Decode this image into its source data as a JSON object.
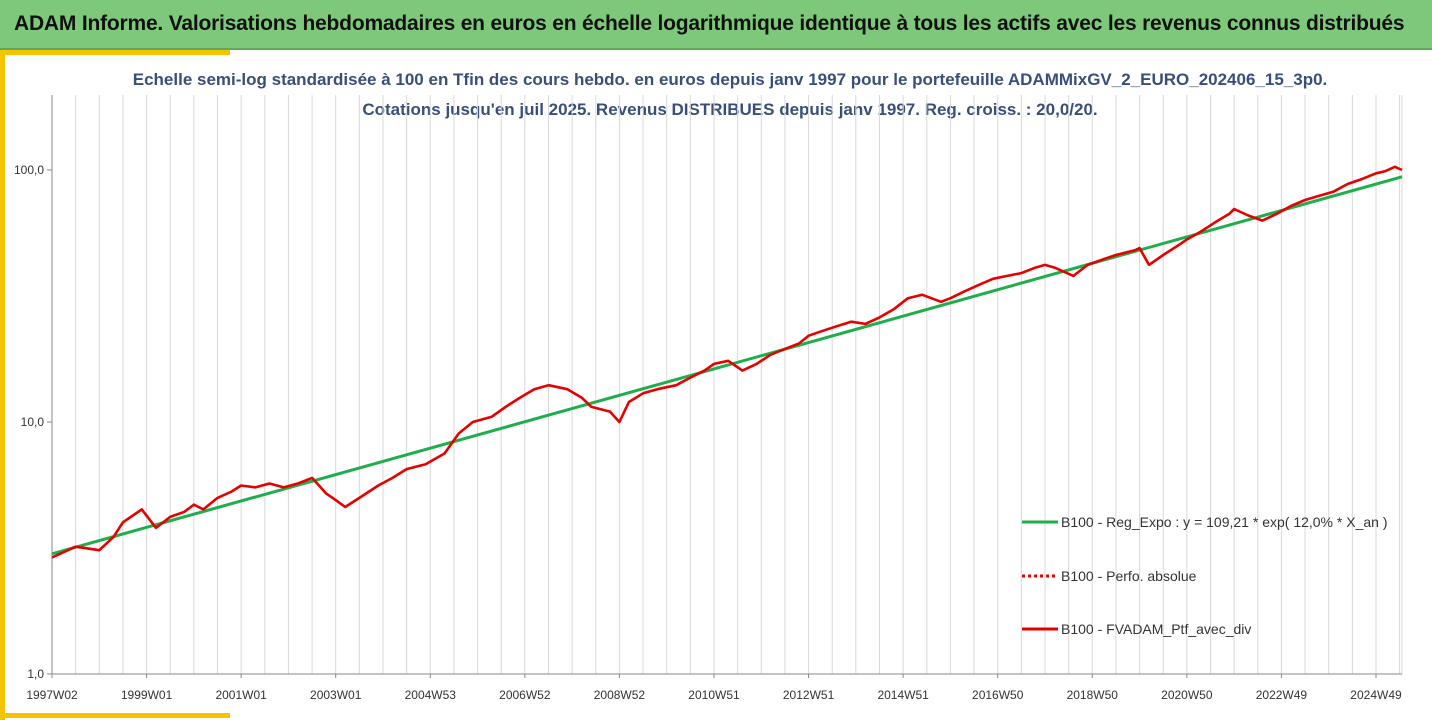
{
  "header": {
    "title": "ADAM Informe. Valorisations hebdomadaires en euros en échelle logarithmique identique à tous les actifs avec les revenus connus distribués"
  },
  "colors": {
    "banner": "#7dc87a",
    "accent": "#f5c400",
    "regression": "#1fae4b",
    "portfolio": "#e60000",
    "grid": "#d9d9d9",
    "subtitle": "#3a4e7a"
  },
  "chart_data": {
    "type": "line",
    "title": "Echelle semi-log standardisée  à 100 en Tfin des cours hebdo.  en euros depuis janv 1997 pour le portefeuille ADAMMixGV_2_EURO_202406_15_3p0.",
    "subtitle": "Cotations  jusqu'en juil 2025. Revenus DISTRIBUES depuis janv 1997. Reg. croiss. : 20,0/20.",
    "y_scale": "log",
    "ylim": [
      1,
      200
    ],
    "y_ticks": [
      1,
      10,
      100
    ],
    "y_tick_labels": [
      "1,0",
      "10,0",
      "100,0"
    ],
    "x_range": [
      1997.0,
      2025.55
    ],
    "x_tick_labels": [
      "1997W02",
      "1999W01",
      "2001W01",
      "2003W01",
      "2004W53",
      "2006W52",
      "2008W52",
      "2010W51",
      "2012W51",
      "2014W51",
      "2016W50",
      "2018W50",
      "2020W50",
      "2022W49",
      "2024W49"
    ],
    "x_tick_years": [
      1997.0,
      1999.0,
      2001.0,
      2003.0,
      2005.0,
      2007.0,
      2009.0,
      2011.0,
      2013.0,
      2015.0,
      2017.0,
      2019.0,
      2021.0,
      2023.0,
      2025.0
    ],
    "grid": "vertical",
    "legend_position": "right",
    "series": [
      {
        "name": "B100 - Reg_Expo : y = 109,21 * exp( 12,0% *  X_an )",
        "style": "solid",
        "color": "#1fae4b",
        "x": [
          1997.0,
          2025.55
        ],
        "y": [
          3.0,
          94.0
        ]
      },
      {
        "name": "B100 - Perfo. absolue",
        "style": "dotted",
        "color": "#e60000",
        "x": [],
        "y": []
      },
      {
        "name": "B100 - FVADAM_Ptf_avec_div",
        "style": "solid",
        "color": "#e60000",
        "x": [
          1997.0,
          1997.5,
          1998.0,
          1998.3,
          1998.5,
          1998.9,
          1999.2,
          1999.5,
          1999.8,
          2000.0,
          2000.2,
          2000.5,
          2000.8,
          2001.0,
          2001.3,
          2001.6,
          2001.9,
          2002.2,
          2002.5,
          2002.8,
          2003.0,
          2003.2,
          2003.5,
          2003.9,
          2004.2,
          2004.5,
          2004.9,
          2005.3,
          2005.6,
          2005.9,
          2006.3,
          2006.6,
          2006.9,
          2007.2,
          2007.5,
          2007.9,
          2008.2,
          2008.4,
          2008.8,
          2009.0,
          2009.2,
          2009.5,
          2009.8,
          2010.2,
          2010.5,
          2010.8,
          2011.0,
          2011.3,
          2011.6,
          2011.9,
          2012.2,
          2012.5,
          2012.8,
          2013.0,
          2013.3,
          2013.6,
          2013.9,
          2014.2,
          2014.5,
          2014.8,
          2015.1,
          2015.4,
          2015.8,
          2016.0,
          2016.3,
          2016.6,
          2016.9,
          2017.2,
          2017.5,
          2017.8,
          2018.0,
          2018.2,
          2018.6,
          2018.9,
          2019.2,
          2019.5,
          2019.9,
          2020.0,
          2020.2,
          2020.5,
          2020.8,
          2021.0,
          2021.3,
          2021.6,
          2021.9,
          2022.0,
          2022.3,
          2022.6,
          2022.9,
          2023.2,
          2023.5,
          2023.8,
          2024.1,
          2024.4,
          2024.7,
          2025.0,
          2025.2,
          2025.4,
          2025.55
        ],
        "y": [
          2.9,
          3.2,
          3.1,
          3.5,
          4.0,
          4.5,
          3.8,
          4.2,
          4.4,
          4.7,
          4.5,
          5.0,
          5.3,
          5.6,
          5.5,
          5.7,
          5.5,
          5.7,
          6.0,
          5.2,
          4.9,
          4.6,
          5.0,
          5.6,
          6.0,
          6.5,
          6.8,
          7.5,
          9.0,
          10.0,
          10.5,
          11.5,
          12.5,
          13.5,
          14.0,
          13.5,
          12.5,
          11.5,
          11.0,
          10.0,
          12.0,
          13.0,
          13.5,
          14.0,
          15.0,
          16.0,
          17.0,
          17.5,
          16.0,
          17.0,
          18.5,
          19.5,
          20.5,
          22.0,
          23.0,
          24.0,
          25.0,
          24.5,
          26.0,
          28.0,
          31.0,
          32.0,
          30.0,
          31.0,
          33.0,
          35.0,
          37.0,
          38.0,
          39.0,
          41.0,
          42.0,
          41.0,
          38.0,
          42.0,
          44.0,
          46.0,
          48.0,
          49.0,
          42.0,
          46.0,
          50.0,
          53.0,
          57.0,
          62.0,
          67.0,
          70.0,
          66.0,
          63.0,
          67.0,
          72.0,
          76.0,
          79.0,
          82.0,
          88.0,
          92.0,
          97.0,
          99.0,
          103.0,
          100.0
        ]
      }
    ]
  }
}
